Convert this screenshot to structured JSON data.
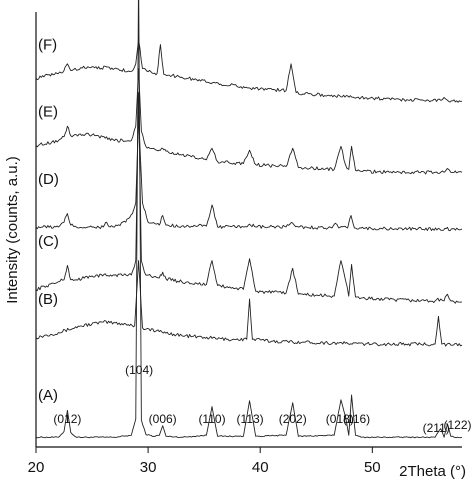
{
  "chart_data": {
    "type": "line",
    "title": "",
    "xlabel": "2Theta (°)",
    "ylabel": "Intensity (counts, a.u.)",
    "xlim": [
      20,
      58
    ],
    "xticks": [
      20,
      30,
      40,
      50
    ],
    "grid": false,
    "series": [
      {
        "name": "(A)",
        "baseline": 0.0,
        "x": [
          20,
          22.0,
          22.5,
          22.8,
          23.1,
          23.6,
          25,
          27,
          28.5,
          28.9,
          29.15,
          29.4,
          29.8,
          30.5,
          31.0,
          31.3,
          31.6,
          33,
          35.2,
          35.7,
          36.2,
          38.5,
          39.05,
          39.6,
          42.3,
          42.9,
          43.4,
          46.6,
          47.2,
          47.6,
          47.9,
          48.15,
          48.5,
          49.0,
          52,
          55.6,
          56.1,
          56.4,
          56.7,
          57.0,
          57.3,
          57.6,
          58
        ],
        "y": [
          0.06,
          0.06,
          0.12,
          0.34,
          0.11,
          0.06,
          0.06,
          0.06,
          0.08,
          0.25,
          4.9,
          0.24,
          0.09,
          0.07,
          0.08,
          0.18,
          0.07,
          0.06,
          0.08,
          0.38,
          0.07,
          0.07,
          0.44,
          0.07,
          0.08,
          0.42,
          0.07,
          0.08,
          0.45,
          0.28,
          0.08,
          0.5,
          0.08,
          0.06,
          0.06,
          0.06,
          0.15,
          0.06,
          0.2,
          0.07,
          0.06,
          0.06,
          0.06
        ]
      },
      {
        "name": "(B)",
        "baseline": 1.0,
        "x": [
          20,
          22,
          24,
          26,
          28,
          28.8,
          29.15,
          29.5,
          31,
          33,
          35,
          37,
          38.8,
          39.05,
          39.3,
          41,
          44,
          47,
          50,
          53,
          55.6,
          55.9,
          56.2,
          57,
          58
        ],
        "y": [
          0.1,
          0.15,
          0.22,
          0.26,
          0.24,
          0.22,
          0.9,
          0.2,
          0.16,
          0.12,
          0.1,
          0.08,
          0.08,
          0.5,
          0.08,
          0.06,
          0.05,
          0.04,
          0.03,
          0.03,
          0.03,
          0.32,
          0.03,
          0.02,
          0.02
        ]
      },
      {
        "name": "(C)",
        "baseline": 1.6,
        "x": [
          20,
          22.0,
          22.5,
          22.8,
          23.1,
          23.6,
          25,
          27,
          28.5,
          28.9,
          29.15,
          29.4,
          29.8,
          30.5,
          31.0,
          31.3,
          31.6,
          33,
          35.2,
          35.7,
          36.2,
          38.5,
          39.05,
          39.6,
          42.3,
          42.9,
          43.4,
          46.6,
          47.2,
          47.6,
          47.9,
          48.15,
          48.5,
          49.0,
          52,
          55.6,
          56.1,
          56.4,
          56.7,
          57.0,
          57.3,
          57.6,
          58
        ],
        "y": [
          0.0,
          0.08,
          0.1,
          0.25,
          0.1,
          0.1,
          0.14,
          0.15,
          0.15,
          0.3,
          2.05,
          0.3,
          0.15,
          0.13,
          0.12,
          0.18,
          0.11,
          0.08,
          0.05,
          0.3,
          0.04,
          0.0,
          0.32,
          -0.02,
          -0.04,
          0.22,
          -0.05,
          -0.07,
          0.3,
          0.1,
          -0.07,
          0.26,
          -0.08,
          -0.09,
          -0.11,
          -0.12,
          -0.1,
          -0.12,
          -0.05,
          -0.12,
          -0.13,
          -0.13,
          -0.13
        ]
      },
      {
        "name": "(D)",
        "baseline": 2.25,
        "x": [
          20,
          22.0,
          22.5,
          22.8,
          23.1,
          23.6,
          25,
          26.0,
          26.3,
          26.6,
          27,
          28.0,
          28.6,
          28.9,
          29.15,
          29.5,
          30,
          31.0,
          31.3,
          31.6,
          33,
          35.2,
          35.7,
          36.2,
          38.5,
          39.05,
          39.6,
          42.3,
          42.9,
          43.4,
          46.4,
          46.7,
          47.0,
          47.8,
          48.1,
          48.4,
          52,
          56,
          58
        ],
        "y": [
          0.0,
          0.0,
          0.05,
          0.14,
          0.02,
          0.0,
          0.0,
          0.0,
          0.05,
          0.0,
          0.0,
          0.05,
          0.14,
          0.25,
          1.15,
          0.25,
          0.05,
          0.02,
          0.12,
          0.02,
          0.01,
          0.01,
          0.23,
          0.0,
          0.0,
          0.03,
          0.0,
          0.0,
          0.04,
          0.0,
          -0.01,
          0.04,
          -0.01,
          -0.01,
          0.12,
          -0.01,
          -0.02,
          -0.02,
          -0.02
        ]
      },
      {
        "name": "(E)",
        "baseline": 2.95,
        "x": [
          20,
          22.0,
          22.5,
          22.8,
          23.1,
          23.6,
          25,
          27,
          28.5,
          28.9,
          29.15,
          29.4,
          29.8,
          30.5,
          31.0,
          31.3,
          31.6,
          33,
          35.2,
          35.7,
          36.2,
          38.5,
          39.05,
          39.6,
          42.3,
          42.9,
          43.4,
          46.6,
          47.2,
          47.6,
          47.9,
          48.15,
          48.5,
          49.0,
          52,
          55.6,
          56.1,
          56.4,
          56.7,
          57.0,
          57.3,
          57.6,
          58
        ],
        "y": [
          0.15,
          0.2,
          0.24,
          0.35,
          0.25,
          0.26,
          0.26,
          0.2,
          0.2,
          0.35,
          0.95,
          0.3,
          0.14,
          0.12,
          0.1,
          0.12,
          0.09,
          0.05,
          0.0,
          0.12,
          -0.02,
          -0.04,
          0.1,
          -0.05,
          -0.07,
          0.12,
          -0.08,
          -0.1,
          0.14,
          -0.05,
          -0.1,
          0.14,
          -0.11,
          -0.12,
          -0.13,
          -0.13,
          -0.13,
          -0.13,
          -0.09,
          -0.13,
          -0.13,
          -0.13,
          -0.13
        ]
      },
      {
        "name": "(F)",
        "baseline": 3.65,
        "x": [
          20,
          22.0,
          22.5,
          22.8,
          23.1,
          24,
          25,
          27,
          28.5,
          28.9,
          29.15,
          29.5,
          30.5,
          30.8,
          31.1,
          31.4,
          33,
          36,
          39,
          42.3,
          42.75,
          43.2,
          46,
          49,
          52,
          55,
          56.1,
          56.4,
          56.7,
          58
        ],
        "y": [
          0.15,
          0.2,
          0.23,
          0.3,
          0.23,
          0.26,
          0.27,
          0.25,
          0.22,
          0.3,
          0.55,
          0.25,
          0.2,
          0.2,
          0.5,
          0.19,
          0.16,
          0.1,
          0.05,
          0.02,
          0.3,
          0.0,
          -0.03,
          -0.05,
          -0.07,
          -0.08,
          -0.08,
          -0.05,
          -0.08,
          -0.09
        ]
      }
    ],
    "annotations": [
      {
        "text": "(012)",
        "x": 22.8
      },
      {
        "text": "(104)",
        "x": 29.2
      },
      {
        "text": "(006)",
        "x": 31.3
      },
      {
        "text": "(110)",
        "x": 35.7
      },
      {
        "text": "(113)",
        "x": 39.1
      },
      {
        "text": "(202)",
        "x": 42.9
      },
      {
        "text": "(018)",
        "x": 47.1
      },
      {
        "text": "(116)",
        "x": 48.6
      },
      {
        "text": "(211)",
        "x": 55.7
      },
      {
        "text": "(122)",
        "x": 57.6
      }
    ]
  }
}
